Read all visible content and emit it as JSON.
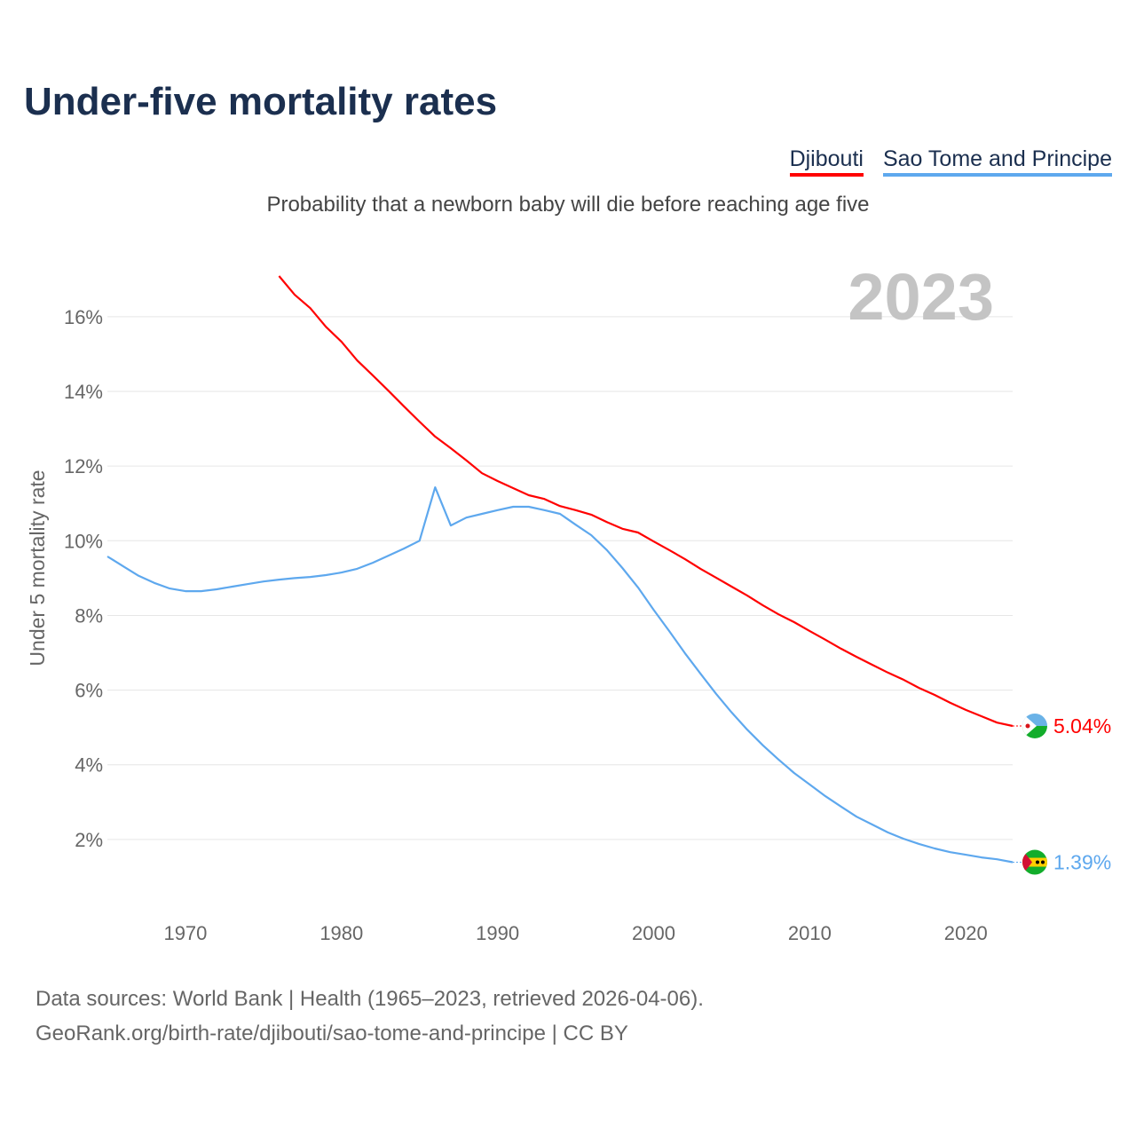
{
  "title": "Under-five mortality rates",
  "subtitle": "Probability that a newborn baby will die before reaching age five",
  "year_label": "2023",
  "footer": {
    "line1": "Data sources: World Bank | Health (1965–2023, retrieved 2026-04-06).",
    "line2": "GeoRank.org/birth-rate/djibouti/sao-tome-and-principe | CC BY"
  },
  "chart_data": {
    "type": "line",
    "title": "Under-five mortality rates",
    "ylabel": "Under 5 mortality rate",
    "xlabel": "",
    "xlim": [
      1965,
      2023
    ],
    "ylim": [
      0,
      17.5
    ],
    "x_ticks": [
      1970,
      1980,
      1990,
      2000,
      2010,
      2020
    ],
    "y_ticks": [
      2,
      4,
      6,
      8,
      10,
      12,
      14,
      16
    ],
    "y_tick_labels": [
      "2%",
      "4%",
      "6%",
      "8%",
      "10%",
      "12%",
      "14%",
      "16%"
    ],
    "grid": true,
    "legend_position": "top-right",
    "series": [
      {
        "name": "Djibouti",
        "color": "#ff0000",
        "end_label": "5.04%",
        "flag": "djibouti-flag",
        "start_year": 1976,
        "values": [
          17.09,
          16.59,
          16.23,
          15.73,
          15.33,
          14.83,
          14.43,
          14.02,
          13.6,
          13.19,
          12.79,
          12.48,
          12.15,
          11.81,
          11.6,
          11.41,
          11.22,
          11.12,
          10.93,
          10.82,
          10.7,
          10.5,
          10.32,
          10.22,
          9.98,
          9.75,
          9.51,
          9.25,
          9.01,
          8.77,
          8.53,
          8.27,
          8.03,
          7.82,
          7.58,
          7.35,
          7.11,
          6.89,
          6.68,
          6.47,
          6.28,
          6.06,
          5.87,
          5.66,
          5.47,
          5.3,
          5.13,
          5.04
        ]
      },
      {
        "name": "Sao Tome and Principe",
        "color": "#5ea8ee",
        "end_label": "1.39%",
        "flag": "sao-tome-flag",
        "start_year": 1965,
        "values": [
          9.58,
          9.32,
          9.06,
          8.87,
          8.72,
          8.65,
          8.65,
          8.7,
          8.77,
          8.84,
          8.91,
          8.96,
          9.0,
          9.03,
          9.08,
          9.15,
          9.25,
          9.41,
          9.6,
          9.79,
          10.0,
          11.43,
          10.41,
          10.62,
          10.72,
          10.82,
          10.91,
          10.91,
          10.82,
          10.72,
          10.43,
          10.15,
          9.75,
          9.27,
          8.75,
          8.15,
          7.58,
          6.99,
          6.44,
          5.9,
          5.4,
          4.94,
          4.52,
          4.14,
          3.78,
          3.47,
          3.16,
          2.88,
          2.61,
          2.4,
          2.19,
          2.02,
          1.88,
          1.76,
          1.66,
          1.59,
          1.52,
          1.47,
          1.39
        ]
      }
    ]
  }
}
